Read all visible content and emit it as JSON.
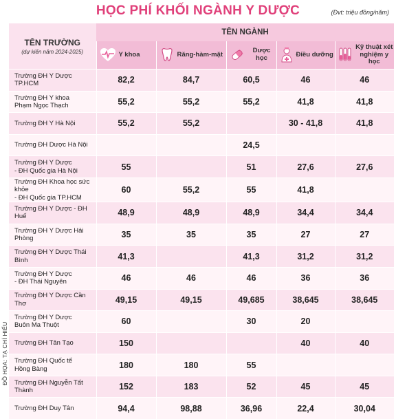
{
  "title": "HỌC PHÍ KHỐI NGÀNH Y DƯỢC",
  "unit_note": "(Đvt: triệu đồng/năm)",
  "credit": "ĐỒ HỌA: TẠ CHÍ HIẾU",
  "header": {
    "school_col": "TÊN TRƯỜNG",
    "school_sub": "(dự kiến năm 2024-2025)",
    "major_group": "TÊN NGÀNH",
    "columns": [
      {
        "label": "Y khoa",
        "icon": "heart-pulse-icon"
      },
      {
        "label": "Răng-hàm-mặt",
        "icon": "tooth-icon"
      },
      {
        "label": "Dược học",
        "icon": "pill-icon"
      },
      {
        "label": "Điều dưỡng",
        "icon": "nurse-icon"
      },
      {
        "label": "Kỹ thuật xét nghiệm y học",
        "icon": "test-tube-icon"
      }
    ]
  },
  "rows": [
    {
      "name": [
        "Trường ĐH Y Dược TP.HCM"
      ],
      "values": [
        "82,2",
        "84,7",
        "60,5",
        "46",
        "46"
      ]
    },
    {
      "name": [
        "Trường ĐH Y khoa",
        "Phạm Ngọc Thạch"
      ],
      "values": [
        "55,2",
        "55,2",
        "55,2",
        "41,8",
        "41,8"
      ]
    },
    {
      "name": [
        "Trường ĐH Y Hà Nội"
      ],
      "values": [
        "55,2",
        "55,2",
        "",
        "30 - 41,8",
        "41,8"
      ]
    },
    {
      "name": [
        "Trường ĐH Dược Hà Nội"
      ],
      "values": [
        "",
        "",
        "24,5",
        "",
        ""
      ]
    },
    {
      "name": [
        "Trường ĐH Y Dược",
        "- ĐH Quốc gia Hà Nội"
      ],
      "values": [
        "55",
        "",
        "51",
        "27,6",
        "27,6"
      ]
    },
    {
      "name": [
        "Trường ĐH Khoa học sức khỏe",
        "- ĐH Quốc gia TP.HCM"
      ],
      "values": [
        "60",
        "55,2",
        "55",
        "41,8",
        ""
      ]
    },
    {
      "name": [
        "Trường ĐH Y Dược - ĐH Huế"
      ],
      "values": [
        "48,9",
        "48,9",
        "48,9",
        "34,4",
        "34,4"
      ]
    },
    {
      "name": [
        "Trường ĐH Y Dược Hải Phòng"
      ],
      "values": [
        "35",
        "35",
        "35",
        "27",
        "27"
      ]
    },
    {
      "name": [
        "Trường ĐH Y Dược Thái Bình"
      ],
      "values": [
        "41,3",
        "",
        "41,3",
        "31,2",
        "31,2"
      ]
    },
    {
      "name": [
        "Trường ĐH Y Dược",
        "- ĐH Thái Nguyên"
      ],
      "values": [
        "46",
        "46",
        "46",
        "36",
        "36"
      ]
    },
    {
      "name": [
        "Trường ĐH Y Dược Cần Thơ"
      ],
      "values": [
        "49,15",
        "49,15",
        "49,685",
        "38,645",
        "38,645"
      ]
    },
    {
      "name": [
        "Trường ĐH Y Dược",
        "Buôn Ma Thuột"
      ],
      "values": [
        "60",
        "",
        "30",
        "20",
        ""
      ]
    },
    {
      "name": [
        "Trường ĐH Tân Tạo"
      ],
      "values": [
        "150",
        "",
        "",
        "40",
        "40"
      ]
    },
    {
      "name": [
        "Trường ĐH Quốc tế",
        "Hồng Bàng"
      ],
      "values": [
        "180",
        "180",
        "55",
        "",
        ""
      ]
    },
    {
      "name": [
        "Trường ĐH Nguyễn Tất Thành"
      ],
      "values": [
        "152",
        "183",
        "52",
        "45",
        "45"
      ]
    },
    {
      "name": [
        "Trường ĐH Duy Tân"
      ],
      "values": [
        "94,4",
        "98,88",
        "36,96",
        "22,4",
        "30,04"
      ]
    }
  ]
}
